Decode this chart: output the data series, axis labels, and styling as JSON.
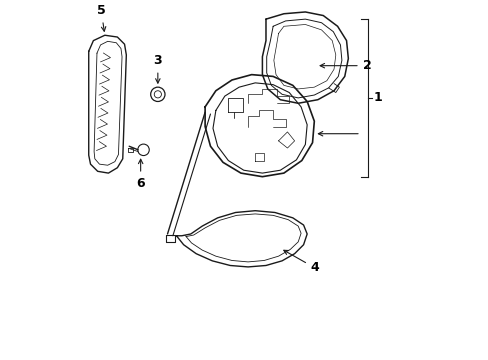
{
  "bg_color": "#ffffff",
  "line_color": "#1a1a1a",
  "label_color": "#000000",
  "figsize": [
    4.89,
    3.6
  ],
  "dpi": 100,
  "xlim": [
    0,
    10
  ],
  "ylim": [
    0,
    10
  ]
}
